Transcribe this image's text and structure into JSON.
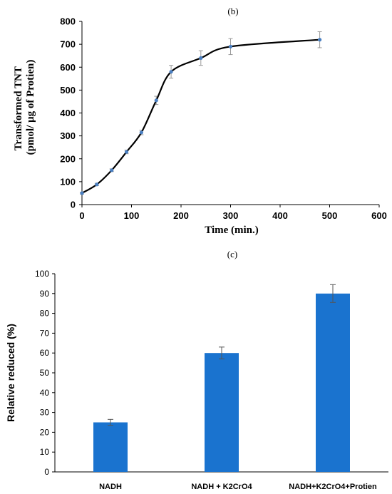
{
  "chart_data": [
    {
      "panel_label": "(b)",
      "type": "line",
      "x": [
        0,
        30,
        60,
        90,
        120,
        150,
        180,
        240,
        300,
        480
      ],
      "y": [
        50,
        88,
        150,
        230,
        315,
        455,
        580,
        640,
        690,
        720
      ],
      "error": [
        4,
        5,
        6,
        8,
        10,
        18,
        28,
        32,
        35,
        35
      ],
      "xlabel": "Time (min.)",
      "ylabel_lines": [
        "Transformed TNT",
        "(pmol/ μg of Protien)"
      ],
      "xlim": [
        0,
        600
      ],
      "ylim": [
        0,
        800
      ],
      "xticks": [
        0,
        100,
        200,
        300,
        400,
        500,
        600
      ],
      "yticks": [
        0,
        100,
        200,
        300,
        400,
        500,
        600,
        700,
        800
      ],
      "grid": false,
      "colors": {
        "line": "#000000",
        "marker": "#4a7fc1",
        "error": "#999999"
      }
    },
    {
      "panel_label": "(c)",
      "type": "bar",
      "categories": [
        "NADH",
        "NADH + K2CrO4",
        "NADH+K2CrO4+Protien"
      ],
      "values": [
        25,
        60,
        90
      ],
      "error": [
        1.5,
        3,
        4.5
      ],
      "xlabel": "",
      "ylabel": "Relative reduced (%)",
      "ylim": [
        0,
        100
      ],
      "yticks": [
        0,
        10,
        20,
        30,
        40,
        50,
        60,
        70,
        80,
        90,
        100
      ],
      "grid": false,
      "colors": {
        "bar": "#1a73cf",
        "error": "#555555"
      }
    }
  ]
}
